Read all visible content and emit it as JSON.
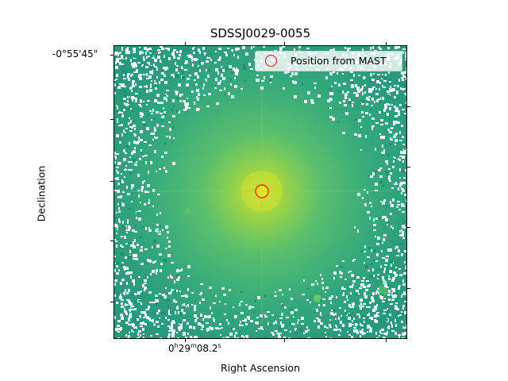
{
  "title": "SDSSJ0029-0055",
  "axes": {
    "xlabel": "Right Ascension",
    "ylabel": "Declination",
    "x_tick_label": {
      "prefix": "0",
      "h": "h",
      "mid": "29",
      "m": "m",
      "sec": "08.2",
      "s": "s"
    },
    "y_tick_label": "-0°55'45\""
  },
  "legend": {
    "label": "Position from MAST",
    "marker_color": "#ff0000"
  },
  "image": {
    "colormap": "viridis-like",
    "target_marker_color": "#ff0000"
  }
}
